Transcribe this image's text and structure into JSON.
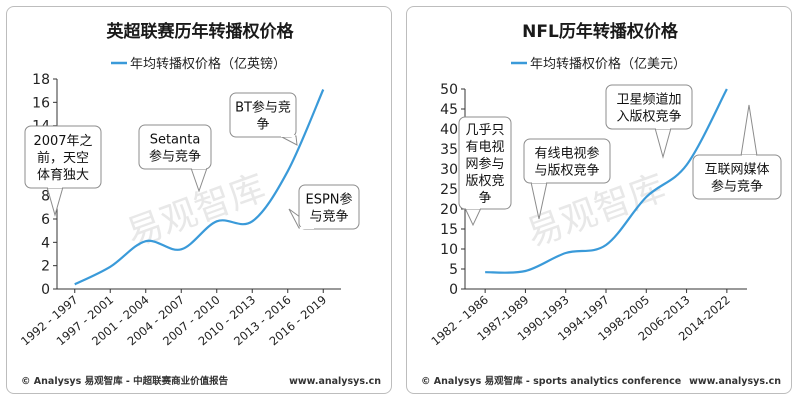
{
  "chart_data": [
    {
      "type": "line",
      "title": "英超联赛历年转播权价格",
      "categories": [
        "1992 - 1997",
        "1997 - 2001",
        "2001 - 2004",
        "2004 - 2007",
        "2007 - 2010",
        "2010 - 2013",
        "2013 - 2016",
        "2016 - 2019"
      ],
      "series": [
        {
          "name": "年均转播权价格（亿英镑）",
          "values": [
            0.4,
            1.9,
            4.1,
            3.4,
            5.8,
            5.8,
            10.1,
            17.1
          ]
        }
      ],
      "ylim": [
        0,
        18
      ],
      "yticks": [
        0,
        2,
        4,
        6,
        8,
        10,
        12,
        14,
        16,
        18
      ],
      "legend": "top",
      "grid": false,
      "color": "#3a9ad9",
      "annotations": [
        {
          "lines": [
            "2007年之",
            "前，天空",
            "体育独大"
          ],
          "target_x": 1.3
        },
        {
          "lines": [
            "Setanta",
            "参与竞争"
          ],
          "target_x": 2.8
        },
        {
          "lines": [
            "BT参与竞",
            "争"
          ],
          "target_x": 6.2
        },
        {
          "lines": [
            "ESPN参",
            "与竞争"
          ],
          "target_x": 5.9
        }
      ],
      "watermark": "易观智库",
      "footer_left": "© Analysys 易观智库 - 中超联赛商业价值报告",
      "footer_right": "www.analysys.cn"
    },
    {
      "type": "line",
      "title": "NFL历年转播权价格",
      "categories": [
        "1982 - 1986",
        "1987-1989",
        "1990-1993",
        "1994-1997",
        "1998-2005",
        "2006-2013",
        "2014-2022"
      ],
      "series": [
        {
          "name": "年均转播权价格（亿美元）",
          "values": [
            4.2,
            4.5,
            9.0,
            11.0,
            23.0,
            31.0,
            50.0
          ]
        }
      ],
      "ylim": [
        0,
        50
      ],
      "yticks": [
        0,
        5,
        10,
        15,
        20,
        25,
        30,
        35,
        40,
        45,
        50
      ],
      "legend": "top",
      "grid": false,
      "color": "#3a9ad9",
      "annotations": [
        {
          "lines": [
            "几乎只",
            "有电视",
            "网参与",
            "版权竞",
            "争"
          ],
          "target_x": 0.1
        },
        {
          "lines": [
            "有线电视参",
            "与版权竞争"
          ],
          "target_x": 1.9
        },
        {
          "lines": [
            "卫星频道加",
            "入版权竞争"
          ],
          "target_x": 4.4
        },
        {
          "lines": [
            "互联网媒体",
            "参与竞争"
          ],
          "target_x": 6.1
        }
      ],
      "watermark": "易观智库",
      "footer_left": "© Analysys 易观智库 - sports analytics conference",
      "footer_right": "www.analysys.cn"
    }
  ]
}
